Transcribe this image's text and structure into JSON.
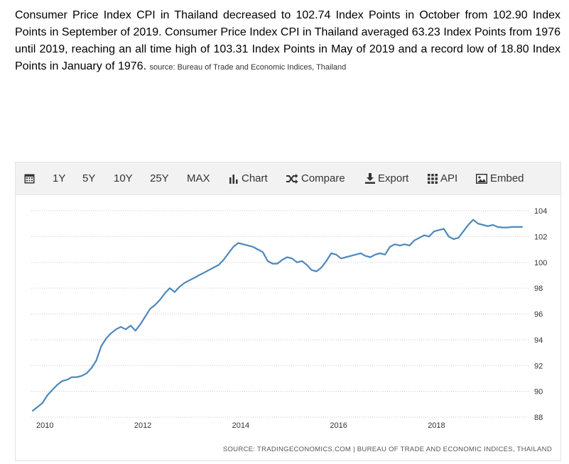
{
  "intro": {
    "text": "Consumer Price Index CPI in Thailand decreased to 102.74 Index Points in October from 102.90 Index Points in September of 2019. Consumer Price Index CPI in Thailand averaged 63.23 Index Points from 1976 until 2019, reaching an all time high of 103.31 Index Points in May of 2019 and a record low of 18.80 Index Points in January of 1976.",
    "source": "source: Bureau of Trade and Economic Indices, Thailand"
  },
  "toolbar": {
    "calendar_icon": "calendar-icon",
    "y1": "1Y",
    "y5": "5Y",
    "y10": "10Y",
    "y25": "25Y",
    "max": "MAX",
    "chart": "Chart",
    "compare": "Compare",
    "export": "Export",
    "api": "API",
    "embed": "Embed"
  },
  "footer": {
    "source": "SOURCE: TRADINGECONOMICS.COM | BUREAU OF TRADE AND ECONOMIC INDICES, THAILAND"
  },
  "chart_data": {
    "type": "line",
    "title": "",
    "xlabel": "",
    "ylabel": "",
    "line_color": "#4d88bd",
    "grid": "horizontal-dotted",
    "y_axis_side": "right",
    "ylim": [
      88,
      104
    ],
    "xlim": [
      2009.72,
      2019.75
    ],
    "y_ticks": [
      88,
      90,
      92,
      94,
      96,
      98,
      100,
      102,
      104
    ],
    "x_ticks": [
      2010,
      2012,
      2014,
      2016,
      2018
    ],
    "x": [
      2009.75,
      2009.85,
      2009.95,
      2010.05,
      2010.15,
      2010.25,
      2010.35,
      2010.45,
      2010.55,
      2010.65,
      2010.75,
      2010.85,
      2010.95,
      2011.05,
      2011.15,
      2011.25,
      2011.35,
      2011.45,
      2011.55,
      2011.65,
      2011.75,
      2011.85,
      2011.95,
      2012.05,
      2012.15,
      2012.25,
      2012.35,
      2012.45,
      2012.55,
      2012.65,
      2012.75,
      2012.85,
      2012.95,
      2013.05,
      2013.15,
      2013.25,
      2013.35,
      2013.45,
      2013.55,
      2013.65,
      2013.75,
      2013.85,
      2013.95,
      2014.05,
      2014.15,
      2014.25,
      2014.35,
      2014.45,
      2014.55,
      2014.65,
      2014.75,
      2014.85,
      2014.95,
      2015.05,
      2015.15,
      2015.25,
      2015.35,
      2015.45,
      2015.55,
      2015.65,
      2015.75,
      2015.85,
      2015.95,
      2016.05,
      2016.15,
      2016.25,
      2016.35,
      2016.45,
      2016.55,
      2016.65,
      2016.75,
      2016.85,
      2016.95,
      2017.05,
      2017.15,
      2017.25,
      2017.35,
      2017.45,
      2017.55,
      2017.65,
      2017.75,
      2017.85,
      2017.95,
      2018.05,
      2018.15,
      2018.25,
      2018.35,
      2018.45,
      2018.55,
      2018.65,
      2018.75,
      2018.85,
      2018.95,
      2019.05,
      2019.15,
      2019.25,
      2019.35,
      2019.45,
      2019.55,
      2019.65,
      2019.75
    ],
    "y": [
      88.5,
      88.8,
      89.1,
      89.7,
      90.1,
      90.5,
      90.8,
      90.9,
      91.1,
      91.1,
      91.2,
      91.4,
      91.8,
      92.4,
      93.5,
      94.1,
      94.5,
      94.8,
      95.0,
      94.8,
      95.1,
      94.7,
      95.2,
      95.8,
      96.4,
      96.7,
      97.1,
      97.6,
      98.0,
      97.7,
      98.1,
      98.4,
      98.6,
      98.8,
      99.0,
      99.2,
      99.4,
      99.6,
      99.8,
      100.2,
      100.7,
      101.2,
      101.5,
      101.4,
      101.3,
      101.2,
      101.0,
      100.8,
      100.1,
      99.9,
      99.9,
      100.2,
      100.4,
      100.3,
      100.0,
      100.1,
      99.8,
      99.4,
      99.3,
      99.6,
      100.1,
      100.7,
      100.6,
      100.3,
      100.4,
      100.5,
      100.6,
      100.7,
      100.5,
      100.4,
      100.6,
      100.7,
      100.6,
      101.2,
      101.4,
      101.3,
      101.4,
      101.3,
      101.7,
      101.9,
      102.1,
      102.0,
      102.4,
      102.5,
      102.6,
      102.0,
      101.8,
      101.9,
      102.4,
      102.9,
      103.3,
      103.0,
      102.9,
      102.8,
      102.9,
      102.74,
      102.7,
      102.7,
      102.74,
      102.74,
      102.74
    ]
  }
}
